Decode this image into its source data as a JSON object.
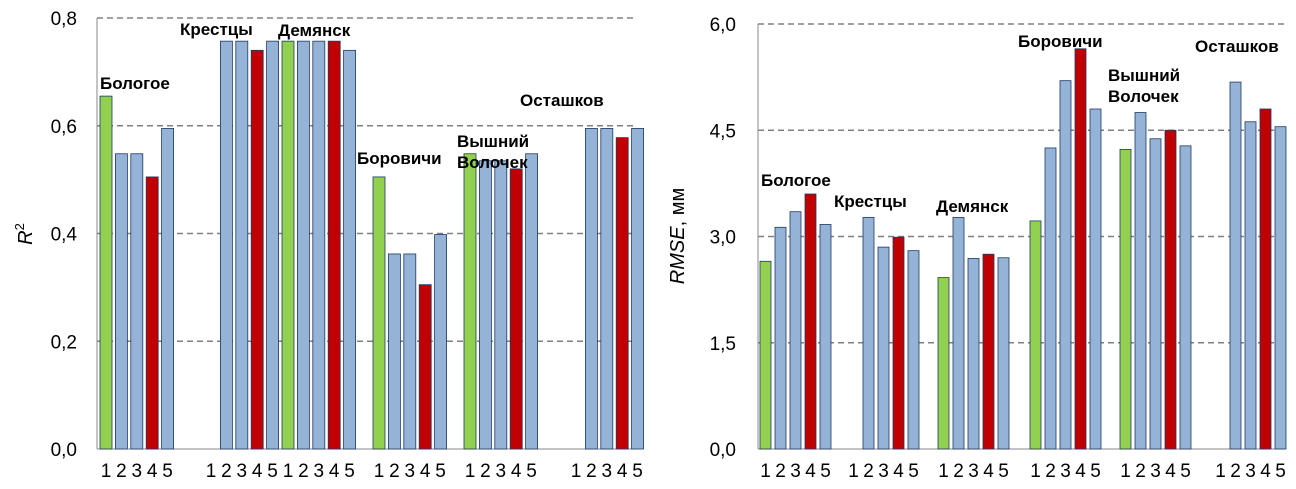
{
  "colors": {
    "green": "#92d050",
    "blue": "#95b3d7",
    "red": "#c00000",
    "grid": "#808080"
  },
  "chart_data": [
    {
      "type": "bar",
      "ylabel": "R",
      "ylabel_sup": "2",
      "ylim": [
        0,
        0.8
      ],
      "yticks": [
        "0,0",
        "0,2",
        "0,4",
        "0,6",
        "0,8"
      ],
      "xtick_labels": [
        "1",
        "2",
        "3",
        "4",
        "5"
      ],
      "grid": "dashed horizontal",
      "bar_colors": [
        "green",
        "blue",
        "blue",
        "red",
        "blue"
      ],
      "groups": [
        {
          "name": "Бологое",
          "values": [
            0.655,
            0.548,
            0.548,
            0.505,
            0.595
          ]
        },
        {
          "name": "Крестцы",
          "values": [
            null,
            0.757,
            0.757,
            0.74,
            0.757
          ]
        },
        {
          "name": "Демянск",
          "values": [
            0.757,
            0.757,
            0.757,
            0.757,
            0.74
          ]
        },
        {
          "name": "Боровичи",
          "values": [
            0.505,
            0.362,
            0.362,
            0.305,
            0.398
          ]
        },
        {
          "name": "Вышний Волочек",
          "values": [
            0.548,
            0.535,
            0.535,
            0.52,
            0.548
          ]
        },
        {
          "name": "Осташков",
          "values": [
            null,
            0.595,
            0.595,
            0.578,
            0.595
          ]
        }
      ]
    },
    {
      "type": "bar",
      "ylabel": "RMSE",
      "ylabel_unit": ", мм",
      "ylim": [
        0,
        6
      ],
      "yticks": [
        "0,0",
        "1,5",
        "3,0",
        "4,5",
        "6,0"
      ],
      "xtick_labels": [
        "1",
        "2",
        "3",
        "4",
        "5"
      ],
      "grid": "dashed horizontal",
      "bar_colors": [
        "green",
        "blue",
        "blue",
        "red",
        "blue"
      ],
      "groups": [
        {
          "name": "Бологое",
          "values": [
            2.65,
            3.13,
            3.35,
            3.6,
            3.17
          ]
        },
        {
          "name": "Крестцы",
          "values": [
            null,
            3.27,
            2.85,
            2.99,
            2.8
          ]
        },
        {
          "name": "Демянск",
          "values": [
            2.42,
            3.27,
            2.69,
            2.75,
            2.7
          ]
        },
        {
          "name": "Боровичи",
          "values": [
            3.22,
            4.25,
            5.2,
            5.65,
            4.8
          ]
        },
        {
          "name": "Вышний Волочек",
          "values": [
            4.23,
            4.75,
            4.38,
            4.5,
            4.28
          ]
        },
        {
          "name": "Осташков",
          "values": [
            null,
            5.18,
            4.62,
            4.8,
            4.55
          ]
        }
      ]
    }
  ]
}
